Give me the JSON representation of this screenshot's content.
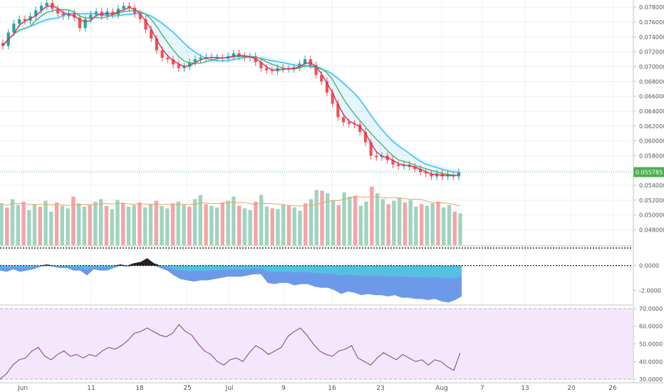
{
  "colors": {
    "background": "#ffffff",
    "grid": "#eef0f3",
    "axis": "#bfc3c8",
    "candle_up": "#26a69a",
    "candle_down": "#ef5350",
    "ma_fast": "#e91e63",
    "ma_mid": "#4caf50",
    "ma_slow": "#29b6f6",
    "cloud_orange": "#ff9800",
    "cloud_gray": "#9e9e9e",
    "volume_up": "#9fd4bd",
    "volume_down": "#f5a3a8",
    "volume_ma": "#f0a060",
    "osc_blue": "#6d9ae8",
    "osc_cyan": "#4dd0e1",
    "osc_black": "#222222",
    "rsi_line": "#7b3f8c",
    "rsi_band": "#f4e6fb",
    "price_label": "#4caf50",
    "last_price_line": "#4caf50"
  },
  "chart_data": [
    {
      "type": "candlestick",
      "panel": "price",
      "y_ticks": [
        "0.078000",
        "0.076000",
        "0.074000",
        "0.072000",
        "0.070000",
        "0.068000",
        "0.066000",
        "0.064000",
        "0.062000",
        "0.060000",
        "0.058000",
        "0.056000",
        "0.054000",
        "0.052000",
        "0.050000",
        "0.048000"
      ],
      "ylim": [
        0.0468,
        0.0786
      ],
      "last_price_label": "0.055785",
      "last_price": 0.055785,
      "close_series": [
        0.0728,
        0.0746,
        0.0758,
        0.0764,
        0.0762,
        0.0768,
        0.0776,
        0.0782,
        0.0786,
        0.0778,
        0.0772,
        0.0768,
        0.0772,
        0.0766,
        0.0752,
        0.0764,
        0.077,
        0.0774,
        0.0768,
        0.0774,
        0.077,
        0.0778,
        0.0782,
        0.0779,
        0.0771,
        0.0764,
        0.075,
        0.0738,
        0.0722,
        0.0712,
        0.071,
        0.0703,
        0.0698,
        0.07,
        0.0706,
        0.071,
        0.0712,
        0.0713,
        0.0712,
        0.0712,
        0.0711,
        0.0714,
        0.0718,
        0.0714,
        0.0712,
        0.0714,
        0.0706,
        0.0698,
        0.0695,
        0.0694,
        0.0698,
        0.0697,
        0.0697,
        0.0699,
        0.0704,
        0.071,
        0.0702,
        0.0689,
        0.068,
        0.0665,
        0.065,
        0.0632,
        0.0625,
        0.0623,
        0.0622,
        0.0612,
        0.0598,
        0.058,
        0.0578,
        0.058,
        0.0574,
        0.0568,
        0.0566,
        0.0568,
        0.0565,
        0.0562,
        0.0558,
        0.0556,
        0.0552,
        0.0556,
        0.0552,
        0.0554,
        0.0552,
        0.05578
      ]
    },
    {
      "type": "bar",
      "panel": "volume",
      "values": [
        50,
        45,
        55,
        48,
        52,
        42,
        49,
        46,
        53,
        40,
        51,
        47,
        44,
        58,
        50,
        46,
        48,
        52,
        55,
        47,
        43,
        54,
        50,
        46,
        48,
        51,
        45,
        49,
        53,
        47,
        44,
        50,
        52,
        48,
        46,
        55,
        60,
        49,
        47,
        45,
        51,
        53,
        58,
        47,
        44,
        42,
        52,
        60,
        46,
        44,
        43,
        48,
        47,
        45,
        41,
        50,
        55,
        66,
        65,
        62,
        54,
        48,
        63,
        58,
        59,
        47,
        52,
        70,
        62,
        55,
        49,
        53,
        57,
        51,
        54,
        46,
        49,
        47,
        50,
        52,
        45,
        48,
        40,
        38
      ]
    },
    {
      "type": "area",
      "panel": "oscillator",
      "y_ticks": [
        "0.0000",
        "-2.0000"
      ],
      "ylim": [
        -3.2,
        1.6
      ],
      "values": [
        -0.4,
        -0.5,
        -0.3,
        -0.5,
        -0.4,
        -0.3,
        -0.1,
        0.1,
        -0.1,
        -0.2,
        -0.2,
        -0.4,
        -0.4,
        -0.8,
        -0.3,
        -0.4,
        -0.4,
        -0.2,
        0.1,
        -0.1,
        0.2,
        0.3,
        0.6,
        0.2,
        -0.2,
        -0.4,
        -0.8,
        -1.1,
        -1.2,
        -1.3,
        -1.2,
        -1.2,
        -1.1,
        -1.0,
        -0.9,
        -0.9,
        -0.9,
        -0.8,
        -0.7,
        -0.7,
        -1.4,
        -1.5,
        -1.4,
        -1.4,
        -1.6,
        -1.5,
        -1.5,
        -1.7,
        -1.8,
        -1.8,
        -2.0,
        -2.3,
        -2.1,
        -2.2,
        -2.4,
        -2.3,
        -2.4,
        -2.4,
        -2.5,
        -2.4,
        -2.6,
        -2.6,
        -2.7,
        -2.7,
        -2.8,
        -2.7,
        -2.9,
        -3.0,
        -2.8,
        -2.5
      ]
    },
    {
      "type": "line",
      "panel": "rsi",
      "y_ticks": [
        "70.0000",
        "60.0000",
        "50.0000",
        "40.0000",
        "30.0000"
      ],
      "ylim": [
        28,
        72
      ],
      "values": [
        30,
        33,
        38,
        41,
        42,
        46,
        48,
        43,
        41,
        44,
        46,
        43,
        44,
        42,
        44,
        43,
        46,
        48,
        47,
        49,
        52,
        56,
        57,
        59,
        57,
        55,
        54,
        56,
        61,
        57,
        55,
        50,
        46,
        44,
        40,
        38,
        41,
        42,
        40,
        45,
        49,
        47,
        44,
        46,
        48,
        54,
        57,
        59,
        55,
        50,
        46,
        44,
        43,
        46,
        47,
        49,
        42,
        40,
        38,
        42,
        45,
        43,
        41,
        44,
        42,
        40,
        41,
        38,
        41,
        40,
        37,
        35,
        45
      ]
    }
  ],
  "x_axis": {
    "labels": [
      "Jun",
      "11",
      "18",
      "25",
      "Jul",
      "9",
      "16",
      "23",
      "Aug",
      "7",
      "13",
      "20",
      "26"
    ]
  },
  "markers": {
    "cross": "×",
    "arrow_up": "▲",
    "arrow_down": "▼"
  }
}
